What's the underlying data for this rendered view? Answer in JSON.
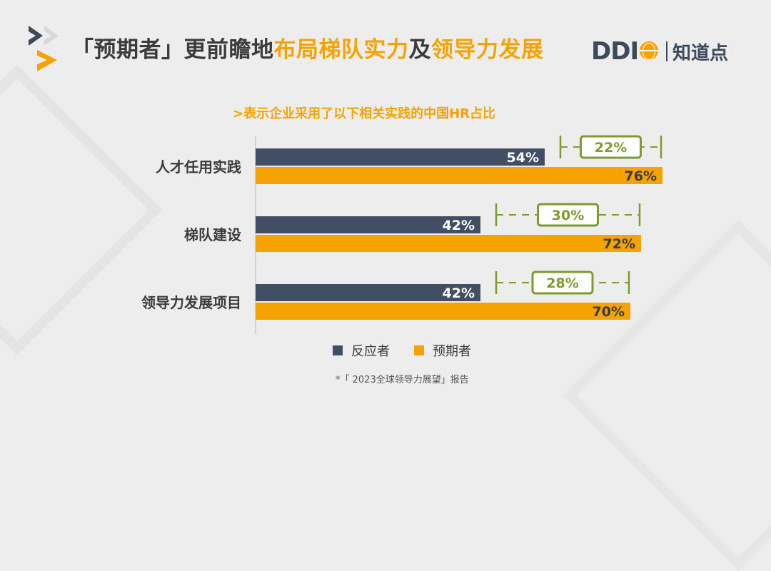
{
  "title": {
    "part1": "「预期者」更前瞻地",
    "part2": "布局梯队实力",
    "part3": "及",
    "part4": "领导力发展"
  },
  "brand": {
    "ddi": "DDI",
    "zhi": "知道点"
  },
  "colors": {
    "reactor": "#414e64",
    "anticipator": "#f5a300",
    "gap": "#7f9a30"
  },
  "chart_data": {
    "type": "bar",
    "orientation": "horizontal",
    "title": ">表示企业采用了以下相关实践的中国HR占比",
    "categories": [
      "人才任用实践",
      "梯队建设",
      "领导力发展项目"
    ],
    "series": [
      {
        "name": "反应者",
        "values": [
          54,
          42,
          42
        ]
      },
      {
        "name": "预期者",
        "values": [
          76,
          72,
          70
        ]
      }
    ],
    "value_suffix": "%",
    "gaps": [
      22,
      30,
      28
    ],
    "xlim": [
      0,
      100
    ],
    "grid": false,
    "legend": "bottom"
  },
  "footnote": "*「 2023全球领导力展望」报告"
}
